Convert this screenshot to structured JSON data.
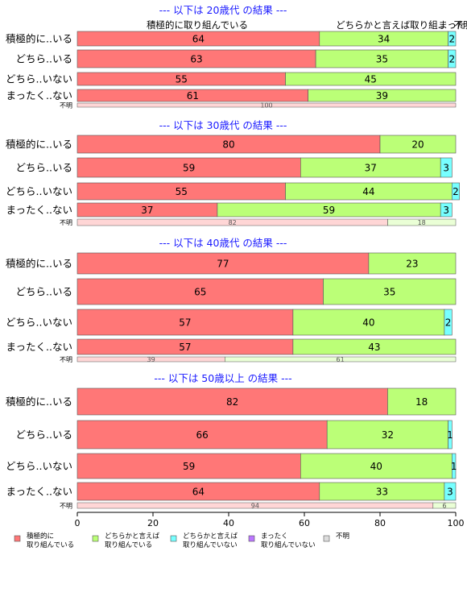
{
  "chart_data": {
    "type": "bar",
    "orientation": "horizontal",
    "stacked": true,
    "xlim": [
      0,
      100
    ],
    "x_ticks": [
      "0",
      "20",
      "40",
      "60",
      "80",
      "100"
    ],
    "top_header": {
      "label_a": "積極的に取り組んでいる",
      "label_b": "どちらかと言えば取り組..",
      "label_c": "まった..",
      "label_d": "不明"
    },
    "legend": {
      "position": "bottom",
      "items": [
        {
          "label_1": "積極的に",
          "label_2": "取り組んでいる",
          "color": "#ff7777"
        },
        {
          "label_1": "どちらかと言えば",
          "label_2": "取り組んでいる",
          "color": "#bbff77"
        },
        {
          "label_1": "どちらかと言えば",
          "label_2": "取り組んでいない",
          "color": "#77ffff"
        },
        {
          "label_1": "まったく",
          "label_2": "取り組んでいない",
          "color": "#bb77ff"
        },
        {
          "label_1": "不明",
          "label_2": "",
          "color": "#dddddd"
        }
      ]
    },
    "groups": [
      {
        "title": "--- 以下は 20歳代 の結果 ---",
        "rows": [
          {
            "label": "積極的に..いる",
            "values": [
              64,
              34,
              2
            ]
          },
          {
            "label": "どちら..いる",
            "values": [
              63,
              35,
              2
            ]
          },
          {
            "label": "どちら..いない",
            "values": [
              55,
              45
            ]
          },
          {
            "label": "まったく..ない",
            "values": [
              61,
              39
            ]
          }
        ],
        "unknown_row": {
          "label": "不明",
          "values": [
            100
          ]
        }
      },
      {
        "title": "--- 以下は 30歳代 の結果 ---",
        "rows": [
          {
            "label": "積極的に..いる",
            "values": [
              80,
              20
            ]
          },
          {
            "label": "どちら..いる",
            "values": [
              59,
              37,
              3
            ]
          },
          {
            "label": "どちら..いない",
            "values": [
              55,
              44,
              2
            ]
          },
          {
            "label": "まったく..ない",
            "values": [
              37,
              59,
              3
            ]
          }
        ],
        "unknown_row": {
          "label": "不明",
          "values": [
            82,
            18
          ]
        }
      },
      {
        "title": "--- 以下は 40歳代 の結果 ---",
        "rows": [
          {
            "label": "積極的に..いる",
            "values": [
              77,
              23
            ]
          },
          {
            "label": "どちら..いる",
            "values": [
              65,
              35
            ]
          },
          {
            "label": "どちら..いない",
            "values": [
              57,
              40,
              2
            ]
          },
          {
            "label": "まったく..ない",
            "values": [
              57,
              43
            ]
          }
        ],
        "unknown_row": {
          "label": "不明",
          "values": [
            39,
            61
          ]
        }
      },
      {
        "title": "--- 以下は 50歳以上 の結果 ---",
        "rows": [
          {
            "label": "積極的に..いる",
            "values": [
              82,
              18
            ]
          },
          {
            "label": "どちら..いる",
            "values": [
              66,
              32,
              1
            ]
          },
          {
            "label": "どちら..いない",
            "values": [
              59,
              40,
              1
            ]
          },
          {
            "label": "まったく..ない",
            "values": [
              64,
              33,
              3
            ]
          }
        ],
        "unknown_row": {
          "label": "不明",
          "values": [
            94,
            6
          ]
        }
      }
    ]
  }
}
